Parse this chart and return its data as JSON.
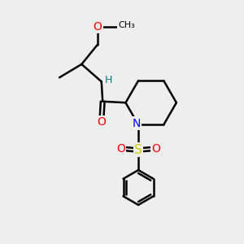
{
  "bg_color": "#eeeeee",
  "bond_color": "#000000",
  "bond_width": 1.8,
  "atom_colors": {
    "O": "#ff0000",
    "N": "#0000ff",
    "S": "#cccc00",
    "H": "#008080",
    "C": "#000000"
  },
  "font_size": 9,
  "fig_size": [
    3.0,
    3.0
  ],
  "dpi": 100
}
